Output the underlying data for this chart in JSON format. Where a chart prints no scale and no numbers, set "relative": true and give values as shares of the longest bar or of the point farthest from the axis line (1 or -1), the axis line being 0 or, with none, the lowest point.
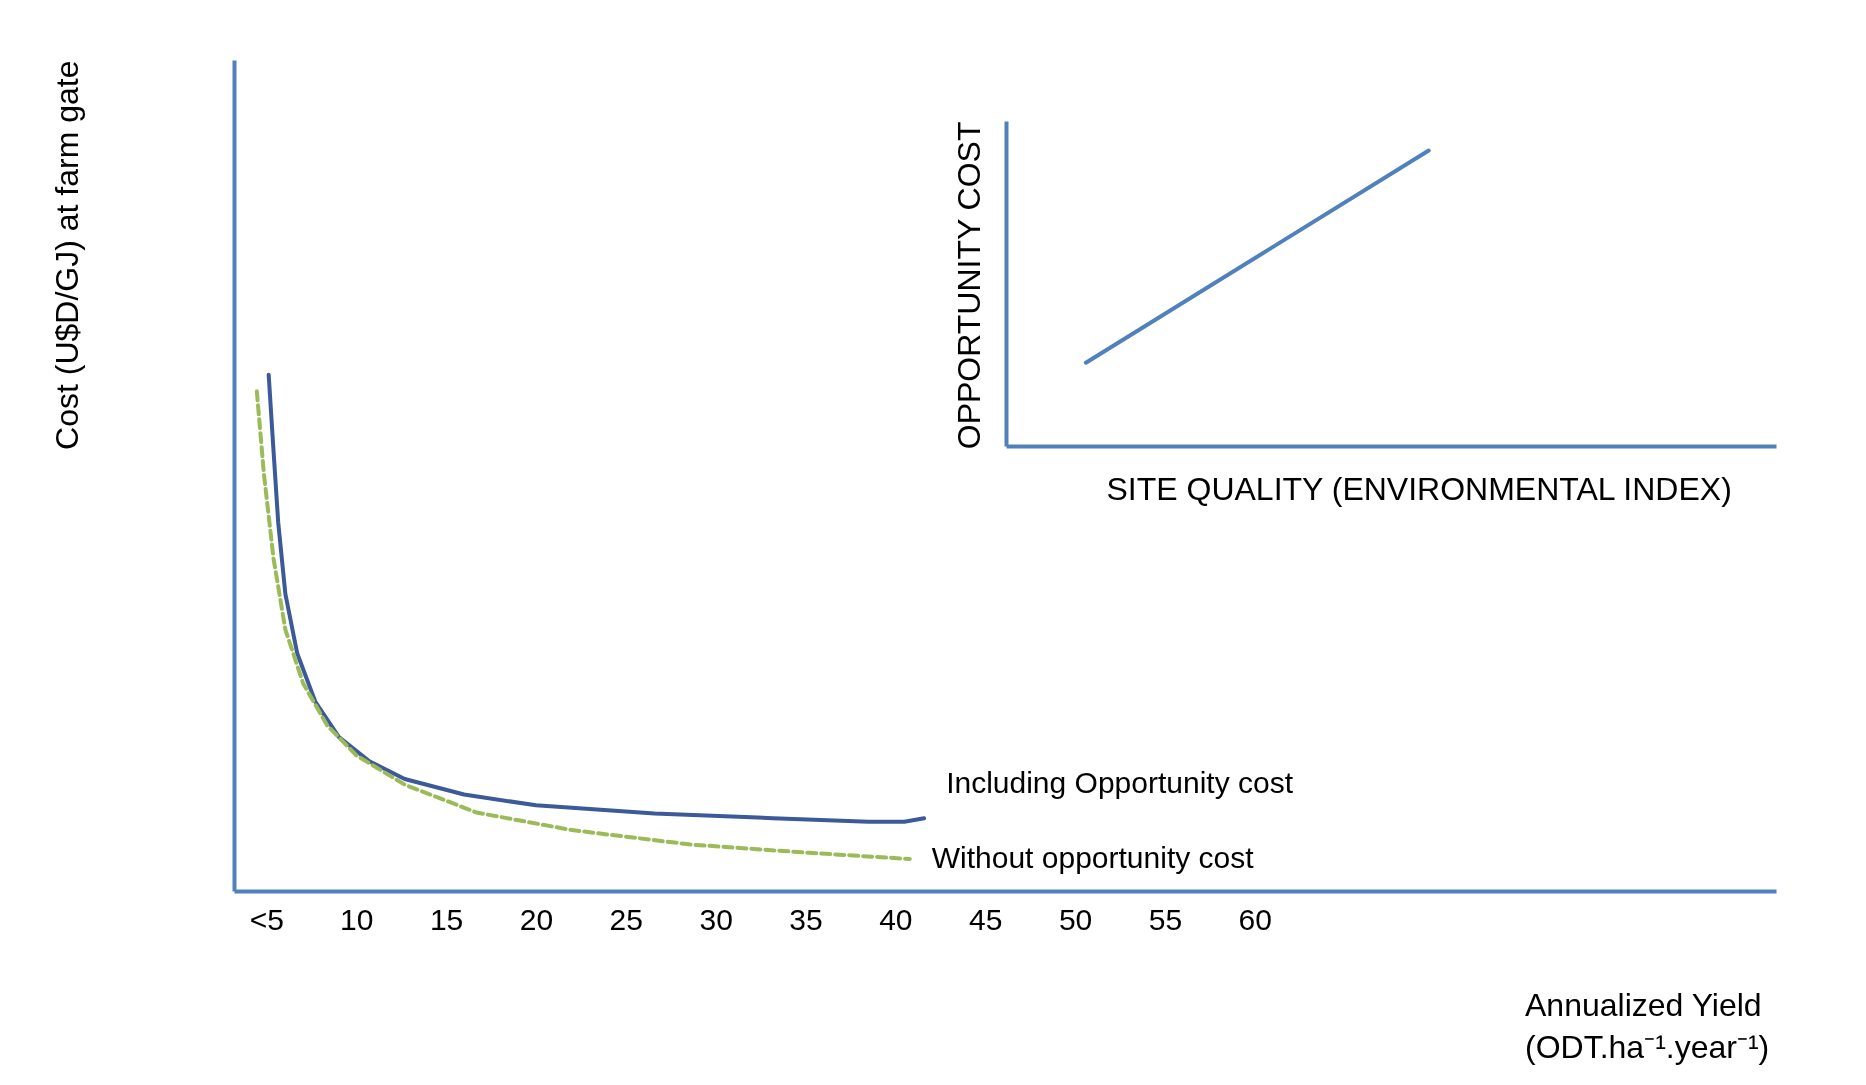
{
  "chart_data": [
    {
      "type": "line",
      "ylabel": "Cost (U$D/GJ) at farm gate",
      "xlabel": "Annualized Yield (ODT.ha⁻¹.year⁻¹)",
      "relative": true,
      "grid": false,
      "marker": "none",
      "xlim": [
        3.2,
        89
      ],
      "xticks": [
        {
          "value": 5,
          "label": "<5"
        },
        10,
        15,
        20,
        25,
        30,
        35,
        40,
        45,
        50,
        55,
        60
      ],
      "series": [
        {
          "name": "Including Opportunity cost",
          "color": "#3c5a99",
          "line_style": "solid",
          "x": [
            5.13,
            5.4,
            5.66,
            6.06,
            6.72,
            7.72,
            9.04,
            10.7,
            12.7,
            16.0,
            20.0,
            26.6,
            33.2,
            38.5,
            40.5,
            41.6
          ],
          "values": [
            1,
            0.852,
            0.714,
            0.575,
            0.46,
            0.367,
            0.298,
            0.252,
            0.217,
            0.187,
            0.166,
            0.15,
            0.141,
            0.134,
            0.134,
            0.141
          ]
        },
        {
          "name": "Without opportunity cost",
          "color": "#9bbb59",
          "line_style": "dashed",
          "x": [
            4.47,
            4.87,
            5.4,
            6.06,
            7.05,
            8.38,
            10.0,
            12.7,
            16.7,
            22.0,
            28.6,
            35.2,
            40.8
          ],
          "values": [
            0.968,
            0.806,
            0.644,
            0.506,
            0.402,
            0.321,
            0.263,
            0.206,
            0.152,
            0.118,
            0.09,
            0.074,
            0.062
          ]
        }
      ]
    },
    {
      "type": "line",
      "ylabel": "OPPORTUNITY COST",
      "xlabel": "SITE QUALITY (ENVIRONMENTAL INDEX)",
      "relative": true,
      "grid": false,
      "marker": "none",
      "categories": [
        null,
        null
      ],
      "series": [
        {
          "color": "#4f81bd",
          "line_style": "solid",
          "values": [
            0.282,
            1
          ]
        }
      ]
    }
  ]
}
